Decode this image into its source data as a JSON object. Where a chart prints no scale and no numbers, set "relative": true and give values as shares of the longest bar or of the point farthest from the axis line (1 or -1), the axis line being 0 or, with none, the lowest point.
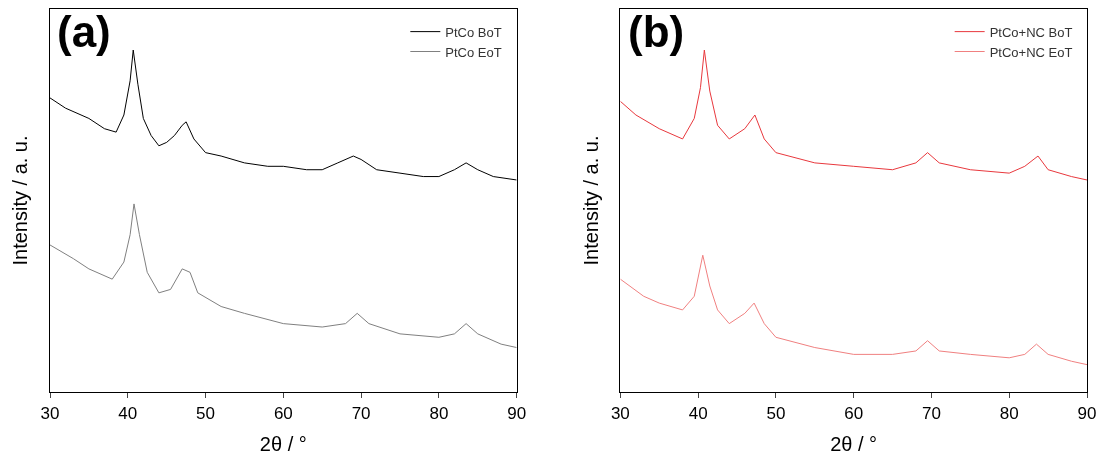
{
  "chart_data": [
    {
      "type": "line",
      "relative": true,
      "xlabel": "2θ / °",
      "ylabel": "Intensity / a. u.",
      "annotations": [
        "(a)"
      ],
      "xlim": [
        30,
        90
      ],
      "xticks": [
        30,
        40,
        50,
        60,
        70,
        80,
        90
      ],
      "legend": "top right",
      "marker": "none",
      "line_style": "solid",
      "series": [
        {
          "name": "PtCo BoT",
          "color": "#000000",
          "x": [
            30,
            32,
            35,
            37,
            38.5,
            39.5,
            40.3,
            40.7,
            41.3,
            42,
            43,
            44,
            45,
            46,
            47,
            47.5,
            48.5,
            50,
            52,
            55,
            58,
            60,
            63,
            65,
            67,
            69,
            70,
            72,
            75,
            78,
            80,
            82,
            83.5,
            85,
            87,
            90
          ],
          "values": [
            0.86,
            0.83,
            0.8,
            0.77,
            0.76,
            0.81,
            0.91,
            1.0,
            0.9,
            0.8,
            0.75,
            0.72,
            0.73,
            0.75,
            0.78,
            0.79,
            0.74,
            0.7,
            0.69,
            0.67,
            0.66,
            0.66,
            0.65,
            0.65,
            0.67,
            0.69,
            0.68,
            0.65,
            0.64,
            0.63,
            0.63,
            0.65,
            0.67,
            0.65,
            0.63,
            0.62
          ]
        },
        {
          "name": "PtCo EoT",
          "color": "#808080",
          "x": [
            30,
            33,
            35,
            38,
            39.5,
            40.3,
            40.8,
            41.5,
            42.5,
            44,
            45.5,
            47,
            48,
            49,
            52,
            55,
            60,
            65,
            68,
            69.5,
            71,
            75,
            80,
            82,
            83.5,
            85,
            88,
            90
          ],
          "values": [
            0.43,
            0.39,
            0.36,
            0.33,
            0.38,
            0.46,
            0.55,
            0.46,
            0.35,
            0.29,
            0.3,
            0.36,
            0.35,
            0.29,
            0.25,
            0.23,
            0.2,
            0.19,
            0.2,
            0.23,
            0.2,
            0.17,
            0.16,
            0.17,
            0.2,
            0.17,
            0.14,
            0.13
          ]
        }
      ]
    },
    {
      "type": "line",
      "relative": true,
      "xlabel": "2θ / °",
      "ylabel": "Intensity / a. u.",
      "annotations": [
        "(b)"
      ],
      "xlim": [
        30,
        90
      ],
      "xticks": [
        30,
        40,
        50,
        60,
        70,
        80,
        90
      ],
      "legend": "top right",
      "marker": "none",
      "line_style": "solid",
      "series": [
        {
          "name": "PtCo+NC BoT",
          "color": "#e8383d",
          "x": [
            30,
            32,
            35,
            38,
            39.5,
            40.3,
            40.8,
            41.5,
            42.5,
            44,
            46,
            47.3,
            48.5,
            50,
            55,
            60,
            65,
            68,
            69.5,
            71,
            75,
            80,
            82,
            83.7,
            85,
            88,
            90
          ],
          "values": [
            0.85,
            0.81,
            0.77,
            0.74,
            0.8,
            0.89,
            1.0,
            0.88,
            0.78,
            0.74,
            0.77,
            0.81,
            0.74,
            0.7,
            0.67,
            0.66,
            0.65,
            0.67,
            0.7,
            0.67,
            0.65,
            0.64,
            0.66,
            0.69,
            0.65,
            0.63,
            0.62
          ]
        },
        {
          "name": "PtCo+NC EoT",
          "color": "#f08080",
          "x": [
            30,
            33,
            35,
            38,
            39.5,
            40.6,
            41.5,
            42.5,
            44,
            46,
            47.2,
            48.5,
            50,
            55,
            60,
            65,
            68,
            69.5,
            71,
            75,
            80,
            82,
            83.5,
            85,
            88,
            90
          ],
          "values": [
            0.33,
            0.28,
            0.26,
            0.24,
            0.28,
            0.4,
            0.31,
            0.24,
            0.2,
            0.23,
            0.26,
            0.2,
            0.16,
            0.13,
            0.11,
            0.11,
            0.12,
            0.15,
            0.12,
            0.11,
            0.1,
            0.11,
            0.14,
            0.11,
            0.09,
            0.08
          ]
        }
      ]
    }
  ]
}
